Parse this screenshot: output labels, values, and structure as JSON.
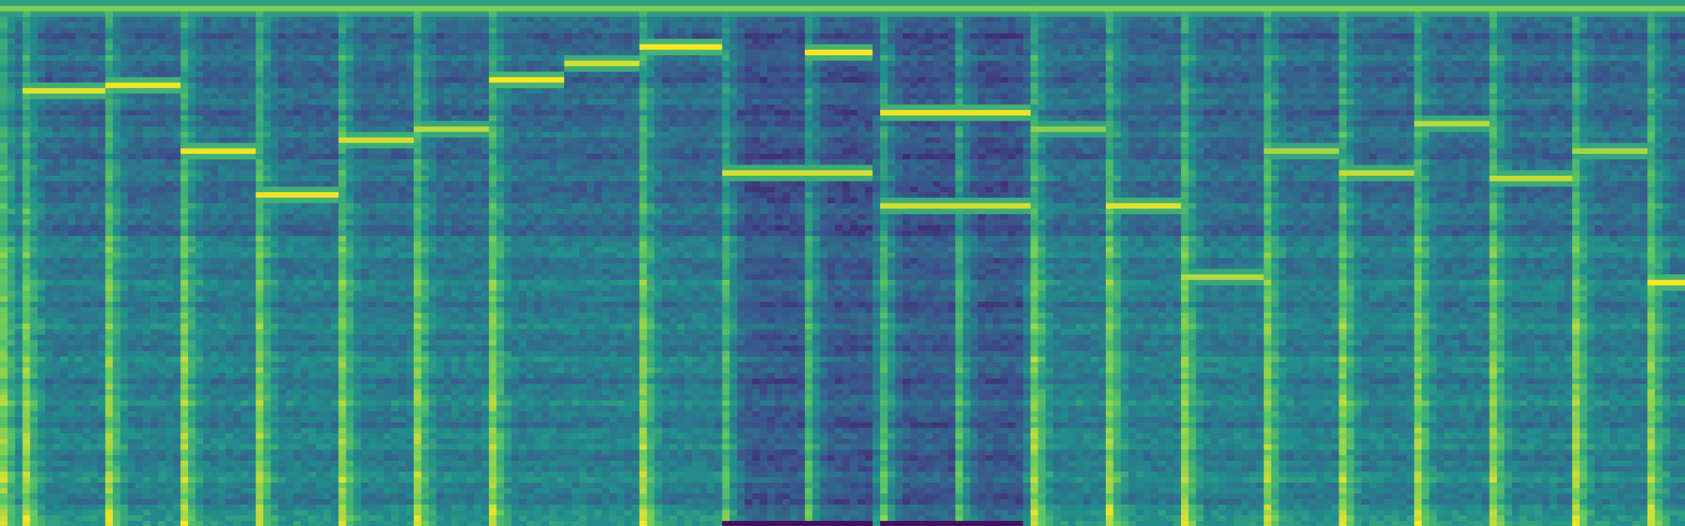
{
  "chart_data": {
    "type": "heatmap",
    "title": "",
    "xlabel": "",
    "ylabel": "",
    "colormap": "viridis",
    "axes_visible": false,
    "grid": false,
    "legend": "none",
    "time_frames": 224,
    "frequency_bins": 96,
    "onset_frames": [
      3,
      14,
      24,
      34,
      45,
      55,
      65,
      85,
      96,
      107,
      117,
      127,
      137,
      147,
      157,
      168,
      178,
      188,
      198,
      209,
      219
    ],
    "quiet_segments": [
      [
        96,
        116
      ],
      [
        117,
        136
      ]
    ],
    "harmonic_lines": [
      {
        "start": 0,
        "end": 224,
        "bin": 94,
        "strength": 0.55
      },
      {
        "start": 3,
        "end": 14,
        "bin": 79,
        "strength": 0.9
      },
      {
        "start": 14,
        "end": 24,
        "bin": 80,
        "strength": 0.95
      },
      {
        "start": 24,
        "end": 34,
        "bin": 68,
        "strength": 0.95
      },
      {
        "start": 34,
        "end": 45,
        "bin": 60,
        "strength": 0.95
      },
      {
        "start": 45,
        "end": 55,
        "bin": 70,
        "strength": 0.85
      },
      {
        "start": 55,
        "end": 65,
        "bin": 72,
        "strength": 0.75
      },
      {
        "start": 65,
        "end": 75,
        "bin": 81,
        "strength": 1.0
      },
      {
        "start": 75,
        "end": 85,
        "bin": 84,
        "strength": 0.85
      },
      {
        "start": 85,
        "end": 96,
        "bin": 87,
        "strength": 1.0
      },
      {
        "start": 96,
        "end": 116,
        "bin": 64,
        "strength": 0.85
      },
      {
        "start": 107,
        "end": 116,
        "bin": 86,
        "strength": 1.0
      },
      {
        "start": 117,
        "end": 137,
        "bin": 75,
        "strength": 0.95
      },
      {
        "start": 117,
        "end": 137,
        "bin": 58,
        "strength": 0.85
      },
      {
        "start": 137,
        "end": 147,
        "bin": 72,
        "strength": 0.6
      },
      {
        "start": 147,
        "end": 157,
        "bin": 58,
        "strength": 0.9
      },
      {
        "start": 157,
        "end": 168,
        "bin": 45,
        "strength": 0.75
      },
      {
        "start": 168,
        "end": 178,
        "bin": 68,
        "strength": 0.7
      },
      {
        "start": 178,
        "end": 188,
        "bin": 64,
        "strength": 0.8
      },
      {
        "start": 188,
        "end": 198,
        "bin": 73,
        "strength": 0.75
      },
      {
        "start": 198,
        "end": 209,
        "bin": 63,
        "strength": 0.8
      },
      {
        "start": 209,
        "end": 219,
        "bin": 68,
        "strength": 0.7
      },
      {
        "start": 219,
        "end": 224,
        "bin": 44,
        "strength": 1.0
      }
    ]
  }
}
